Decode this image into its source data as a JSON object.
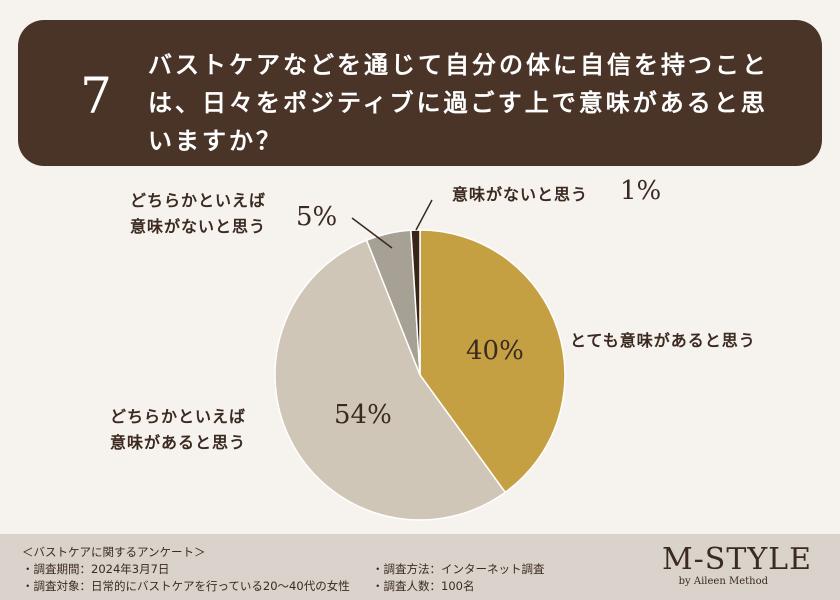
{
  "question": {
    "number": "7",
    "lines": [
      "バストケアなどを通じて自分の体に自信を持つこと",
      "は、日々をポジティブに過ごす上で意味があると思",
      "いますか？"
    ]
  },
  "chart_data": {
    "type": "pie",
    "slices": [
      {
        "label_lines": [
          "とても意味があると思う"
        ],
        "value": 40,
        "display": "40%",
        "color": "#c4a042"
      },
      {
        "label_lines": [
          "どちらかといえば",
          "意味があると思う"
        ],
        "value": 54,
        "display": "54%",
        "color": "#cfc6b8"
      },
      {
        "label_lines": [
          "どちらかといえば",
          "意味がないと思う"
        ],
        "value": 5,
        "display": "5%",
        "color": "#a7a094"
      },
      {
        "label_lines": [
          "意味がないと思う"
        ],
        "value": 1,
        "display": "1%",
        "color": "#3a2418"
      }
    ]
  },
  "footer": {
    "survey_title": "＜バストケアに関するアンケート＞",
    "period": "・調査期間：2024年3月7日",
    "target": "・調査対象：日常的にバストケアを行っている20〜40代の女性",
    "method": "・調査方法：インターネット調査",
    "count": "・調査人数：100名",
    "logo": "M-STYLE",
    "logo_sub": "by Aileen Method"
  }
}
